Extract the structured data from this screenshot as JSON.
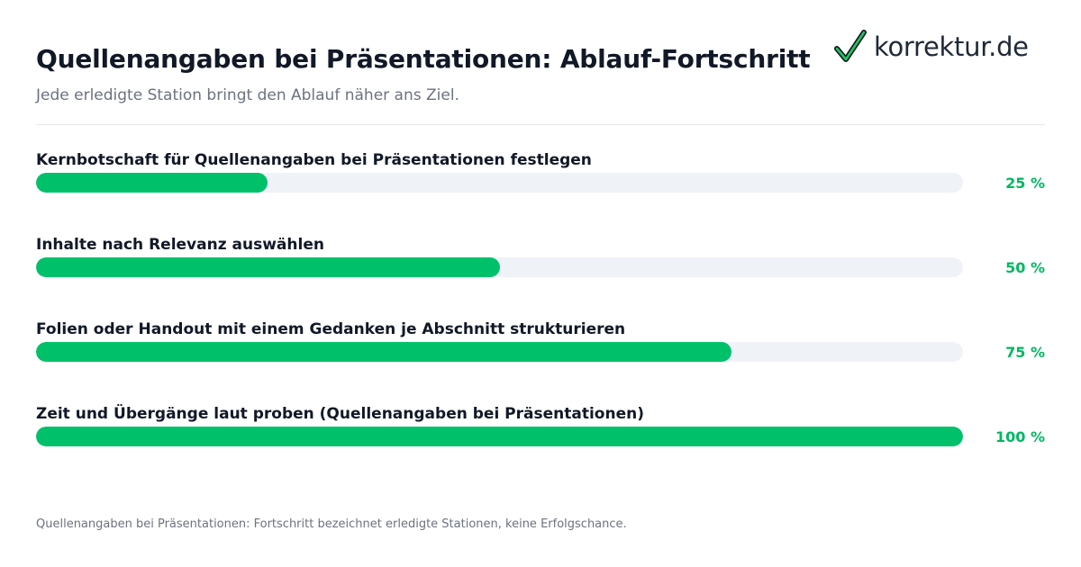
{
  "header": {
    "title": "Quellenangaben bei Präsentationen: Ablauf-Fortschritt",
    "subtitle": "Jede erledigte Station bringt den Ablauf näher ans Ziel."
  },
  "logo": {
    "icon": "checkmark-icon",
    "text": "korrektur.de"
  },
  "colors": {
    "accent": "#00c16a",
    "track": "#eff3f8",
    "percent_text": "#00b861"
  },
  "chart_data": {
    "type": "bar",
    "orientation": "horizontal",
    "categories": [
      "Kernbotschaft für Quellenangaben bei Präsentationen festlegen",
      "Inhalte nach Relevanz auswählen",
      "Folien oder Handout mit einem Gedanken je Abschnitt strukturieren",
      "Zeit und Übergänge laut proben (Quellenangaben bei Präsentationen)"
    ],
    "values": [
      25,
      50,
      75,
      100
    ],
    "value_labels": [
      "25 %",
      "50 %",
      "75 %",
      "100 %"
    ],
    "xlim": [
      0,
      100
    ],
    "title": "Quellenangaben bei Präsentationen: Ablauf-Fortschritt",
    "subtitle": "Jede erledigte Station bringt den Ablauf näher ans Ziel.",
    "grid": false,
    "legend": "none"
  },
  "footnote": "Quellenangaben bei Präsentationen: Fortschritt bezeichnet erledigte Stationen, keine Erfolgschance."
}
